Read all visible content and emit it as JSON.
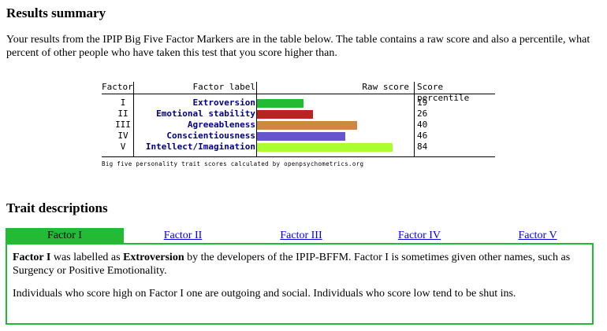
{
  "results": {
    "heading": "Results summary",
    "intro": "Your results from the IPIP Big Five Factor Markers are in the table below. The table contains a raw score and also a percentile, what percent of other people who have taken this test that you score higher than."
  },
  "score_table": {
    "col_factor": "Factor",
    "col_label": "Factor label",
    "col_raw": "Raw score",
    "col_percentile": "Score percentile",
    "rows": [
      {
        "num": "I",
        "label": "Extroversion",
        "percentile": "19",
        "raw_fraction": 0.3,
        "color": "#22bb33"
      },
      {
        "num": "II",
        "label": "Emotional stability",
        "percentile": "26",
        "raw_fraction": 0.36,
        "color": "#bb2222"
      },
      {
        "num": "III",
        "label": "Agreeableness",
        "percentile": "40",
        "raw_fraction": 0.65,
        "color": "#cc8844"
      },
      {
        "num": "IV",
        "label": "Conscientiousness",
        "percentile": "46",
        "raw_fraction": 0.57,
        "color": "#6655cc"
      },
      {
        "num": "V",
        "label": "Intellect/Imagination",
        "percentile": "84",
        "raw_fraction": 0.88,
        "color": "#aaff33"
      }
    ],
    "caption": "Big five personality trait scores calculated by openpsychometrics.org"
  },
  "traits": {
    "heading": "Trait descriptions",
    "tabs": [
      "Factor I",
      "Factor II",
      "Factor III",
      "Factor IV",
      "Factor V"
    ],
    "active_tab": 0,
    "desc_p1_bold1": "Factor I",
    "desc_p1_text1": " was labelled as ",
    "desc_p1_bold2": "Extroversion",
    "desc_p1_text2": " by the developers of the IPIP-BFFM. Factor I is sometimes given other names, such as Surgency or Positive Emotionality.",
    "desc_p2": "Individuals who score high on Factor I one are outgoing and social. Individuals who score low tend to be shut ins."
  }
}
